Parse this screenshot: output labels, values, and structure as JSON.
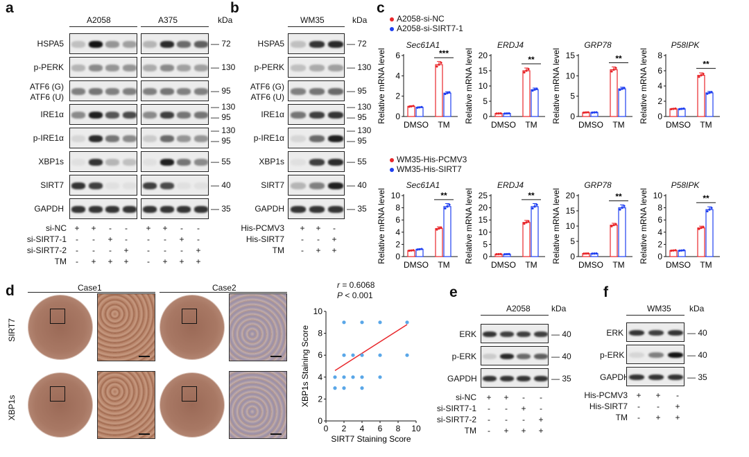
{
  "panels": {
    "a": "a",
    "b": "b",
    "c": "c",
    "d": "d",
    "e": "e",
    "f": "f"
  },
  "kda": "kDa",
  "panel_a": {
    "cell_lines": [
      "A2058",
      "A375"
    ],
    "rows": [
      {
        "label": "HSPA5",
        "mw": [
          "72"
        ],
        "i1": [
          0.2,
          1.0,
          0.4,
          0.35
        ],
        "i2": [
          0.25,
          0.9,
          0.6,
          0.65
        ]
      },
      {
        "label": "p-PERK",
        "mw": [
          "130"
        ],
        "i1": [
          0.25,
          0.45,
          0.4,
          0.4
        ],
        "i2": [
          0.3,
          0.45,
          0.35,
          0.35
        ]
      },
      {
        "label": "ATF6 (G)\nATF6 (U)",
        "mw": [
          "95"
        ],
        "i1": [
          0.5,
          0.55,
          0.5,
          0.5
        ],
        "i2": [
          0.5,
          0.55,
          0.5,
          0.5
        ]
      },
      {
        "label": "IRE1α",
        "mw": [
          "130",
          "95"
        ],
        "i1": [
          0.45,
          0.95,
          0.7,
          0.75
        ],
        "i2": [
          0.45,
          0.8,
          0.55,
          0.55
        ]
      },
      {
        "label": "p-IRE1α",
        "mw": [
          "130",
          "95"
        ],
        "i1": [
          0.1,
          0.9,
          0.55,
          0.45
        ],
        "i2": [
          0.15,
          0.6,
          0.4,
          0.4
        ]
      },
      {
        "label": "XBP1s",
        "mw": [
          "55"
        ],
        "i1": [
          0.05,
          0.85,
          0.25,
          0.2
        ],
        "i2": [
          0.05,
          0.95,
          0.55,
          0.45
        ]
      },
      {
        "label": "SIRT7",
        "mw": [
          "40"
        ],
        "i1": [
          0.85,
          0.8,
          0.05,
          0.05
        ],
        "i2": [
          0.8,
          0.75,
          0.05,
          0.05
        ]
      },
      {
        "label": "GAPDH",
        "mw": [
          "35"
        ],
        "i1": [
          0.85,
          0.85,
          0.85,
          0.85
        ],
        "i2": [
          0.85,
          0.85,
          0.85,
          0.85
        ]
      }
    ],
    "conditions": [
      {
        "label": "si-NC",
        "signs": [
          "+",
          "+",
          "-",
          "-",
          "+",
          "+",
          "-",
          "-"
        ]
      },
      {
        "label": "si-SIRT7-1",
        "signs": [
          "-",
          "-",
          "+",
          "-",
          "-",
          "-",
          "+",
          "-"
        ]
      },
      {
        "label": "si-SIRT7-2",
        "signs": [
          "-",
          "-",
          "-",
          "+",
          "-",
          "-",
          "-",
          "+"
        ]
      },
      {
        "label": "TM",
        "signs": [
          "-",
          "+",
          "+",
          "+",
          "-",
          "+",
          "+",
          "+"
        ]
      }
    ]
  },
  "panel_b": {
    "cell_line": "WM35",
    "rows": [
      {
        "label": "HSPA5",
        "mw": [
          "72"
        ],
        "i": [
          0.2,
          0.85,
          0.9
        ]
      },
      {
        "label": "p-PERK",
        "mw": [
          "130"
        ],
        "i": [
          0.2,
          0.3,
          0.35
        ]
      },
      {
        "label": "ATF6 (G)\nATF6 (U)",
        "mw": [
          "95"
        ],
        "i": [
          0.5,
          0.55,
          0.6
        ]
      },
      {
        "label": "IRE1α",
        "mw": [
          "130",
          "95"
        ],
        "i": [
          0.55,
          0.8,
          0.85
        ]
      },
      {
        "label": "p-IRE1α",
        "mw": [
          "130",
          "95"
        ],
        "i": [
          0.1,
          0.6,
          0.95
        ]
      },
      {
        "label": "XBP1s",
        "mw": [
          "55"
        ],
        "i": [
          0.05,
          0.8,
          0.9
        ]
      },
      {
        "label": "SIRT7",
        "mw": [
          "40"
        ],
        "i": [
          0.25,
          0.5,
          0.95
        ]
      },
      {
        "label": "GAPDH",
        "mw": [
          "35"
        ],
        "i": [
          0.85,
          0.85,
          0.85
        ]
      }
    ],
    "conditions": [
      {
        "label": "His-PCMV3",
        "signs": [
          "+",
          "+",
          "-"
        ]
      },
      {
        "label": "His-SIRT7",
        "signs": [
          "-",
          "-",
          "+"
        ]
      },
      {
        "label": "TM",
        "signs": [
          "-",
          "+",
          "+"
        ]
      }
    ]
  },
  "panel_c": {
    "top_legend": [
      {
        "label": "A2058-si-NC",
        "color": "#e8262a"
      },
      {
        "label": "A2058-si-SIRT7-1",
        "color": "#1f3ff0"
      }
    ],
    "bottom_legend": [
      {
        "label": "WM35-His-PCMV3",
        "color": "#e8262a"
      },
      {
        "label": "WM35-His-SIRT7",
        "color": "#1f3ff0"
      }
    ],
    "ylabel": "Relative mRNA level",
    "categories": [
      "DMSO",
      "TM"
    ],
    "charts": [
      {
        "title": "Sec61A1",
        "ylim": [
          0,
          6
        ],
        "ticks": [
          0,
          2,
          4,
          6
        ],
        "series": [
          [
            1.0,
            5.1
          ],
          [
            0.9,
            2.3
          ]
        ],
        "sig": "***"
      },
      {
        "title": "ERDJ4",
        "ylim": [
          0,
          20
        ],
        "ticks": [
          0,
          5,
          10,
          15,
          20
        ],
        "series": [
          [
            1.0,
            15.0
          ],
          [
            1.0,
            8.8
          ]
        ],
        "sig": "**"
      },
      {
        "title": "GRP78",
        "ylim": [
          0,
          15
        ],
        "ticks": [
          0,
          5,
          10,
          15
        ],
        "series": [
          [
            1.0,
            11.5
          ],
          [
            1.0,
            6.8
          ]
        ],
        "sig": "**"
      },
      {
        "title": "P58IPK",
        "ylim": [
          0,
          8
        ],
        "ticks": [
          0,
          2,
          4,
          6,
          8
        ],
        "series": [
          [
            1.0,
            5.4
          ],
          [
            1.0,
            3.1
          ]
        ],
        "sig": "**"
      },
      {
        "title": "Sec61A1",
        "ylim": [
          0,
          10
        ],
        "ticks": [
          0,
          2,
          4,
          6,
          8,
          10
        ],
        "series": [
          [
            1.0,
            4.6
          ],
          [
            1.2,
            8.2
          ]
        ],
        "sig": "**"
      },
      {
        "title": "ERDJ4",
        "ylim": [
          0,
          25
        ],
        "ticks": [
          0,
          5,
          10,
          15,
          20,
          25
        ],
        "series": [
          [
            1.0,
            14.0
          ],
          [
            1.0,
            20.5
          ]
        ],
        "sig": "**"
      },
      {
        "title": "GRP78",
        "ylim": [
          0,
          20
        ],
        "ticks": [
          0,
          5,
          10,
          15,
          20
        ],
        "series": [
          [
            1.0,
            10.3
          ],
          [
            1.0,
            16.0
          ]
        ],
        "sig": "**"
      },
      {
        "title": "P58IPK",
        "ylim": [
          0,
          10
        ],
        "ticks": [
          0,
          2,
          4,
          6,
          8,
          10
        ],
        "series": [
          [
            1.0,
            4.7
          ],
          [
            1.0,
            7.7
          ]
        ],
        "sig": "**"
      }
    ]
  },
  "panel_d": {
    "cases": [
      "Case1",
      "Case2"
    ],
    "rows": [
      "SIRT7",
      "XBP1s"
    ],
    "r_label": "r",
    "r_value": " = 0.6068",
    "p_label": "P",
    "p_value": " < 0.001",
    "chart_data": {
      "type": "scatter",
      "xlabel": "SIRT7 Staining Score",
      "ylabel": "XBP1s Staining Score",
      "xlim": [
        0,
        10
      ],
      "ylim": [
        0,
        10
      ],
      "xticks": [
        0,
        2,
        4,
        6,
        8,
        10
      ],
      "yticks": [
        0,
        2,
        4,
        6,
        8,
        10
      ],
      "points": [
        [
          1,
          3
        ],
        [
          1,
          4
        ],
        [
          2,
          3
        ],
        [
          2,
          4
        ],
        [
          2,
          6
        ],
        [
          2,
          9
        ],
        [
          3,
          4
        ],
        [
          3,
          6
        ],
        [
          4,
          3
        ],
        [
          4,
          4
        ],
        [
          4,
          6
        ],
        [
          4,
          9
        ],
        [
          6,
          4
        ],
        [
          6,
          6
        ],
        [
          6,
          9
        ],
        [
          9,
          6
        ],
        [
          9,
          9
        ]
      ],
      "fit": [
        [
          1,
          4.6
        ],
        [
          9,
          8.8
        ]
      ],
      "point_color": "#5aa7e8",
      "line_color": "#e8262a"
    }
  },
  "panel_e": {
    "cell_line": "A2058",
    "rows": [
      {
        "label": "ERK",
        "mw": "40",
        "i": [
          0.85,
          0.8,
          0.8,
          0.8
        ]
      },
      {
        "label": "p-ERK",
        "mw": "40",
        "i": [
          0.15,
          0.9,
          0.6,
          0.65
        ]
      },
      {
        "label": "GAPDH",
        "mw": "35",
        "i": [
          0.85,
          0.85,
          0.85,
          0.85
        ]
      }
    ],
    "conditions": [
      {
        "label": "si-NC",
        "signs": [
          "+",
          "+",
          "-",
          "-"
        ]
      },
      {
        "label": "si-SIRT7-1",
        "signs": [
          "-",
          "-",
          "+",
          "-"
        ]
      },
      {
        "label": "si-SIRT7-2",
        "signs": [
          "-",
          "-",
          "-",
          "+"
        ]
      },
      {
        "label": "TM",
        "signs": [
          "-",
          "+",
          "+",
          "+"
        ]
      }
    ]
  },
  "panel_f": {
    "cell_line": "WM35",
    "rows": [
      {
        "label": "ERK",
        "mw": "40",
        "i": [
          0.85,
          0.8,
          0.85
        ]
      },
      {
        "label": "p-ERK",
        "mw": "40",
        "i": [
          0.1,
          0.5,
          1.0
        ]
      },
      {
        "label": "GAPDH",
        "mw": "35",
        "i": [
          0.85,
          0.85,
          0.85
        ]
      }
    ],
    "conditions": [
      {
        "label": "His-PCMV3",
        "signs": [
          "+",
          "+",
          "-"
        ]
      },
      {
        "label": "His-SIRT7",
        "signs": [
          "-",
          "-",
          "+"
        ]
      },
      {
        "label": "TM",
        "signs": [
          "-",
          "+",
          "+"
        ]
      }
    ]
  }
}
